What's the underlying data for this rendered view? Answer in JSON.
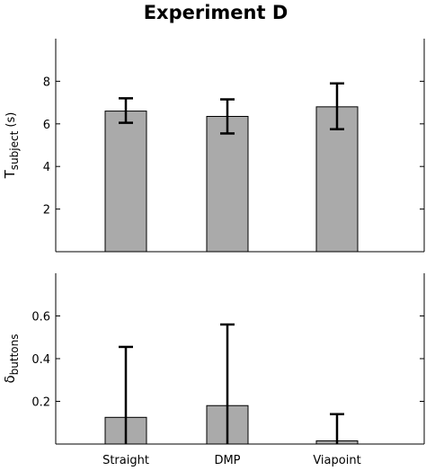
{
  "title": "Experiment D",
  "chart_data": [
    {
      "type": "bar",
      "ylabel": "T",
      "ylabel_sub": "subject",
      "ylabel_unit": " (s)",
      "categories": [
        "Straight",
        "DMP",
        "Viapoint"
      ],
      "values": [
        6.6,
        6.35,
        6.8
      ],
      "errors_low": [
        0.55,
        0.8,
        1.05
      ],
      "errors_high": [
        0.6,
        0.8,
        1.1
      ],
      "ylim": [
        0,
        10
      ],
      "yticks": [
        2,
        4,
        6,
        8
      ],
      "bar_color": "#aaaaaa",
      "grid": false,
      "show_xticklabels": false
    },
    {
      "type": "bar",
      "ylabel": "δ",
      "ylabel_sub": "buttons",
      "ylabel_unit": "",
      "categories": [
        "Straight",
        "DMP",
        "Viapoint"
      ],
      "values": [
        0.125,
        0.18,
        0.015
      ],
      "errors_low": [
        0.125,
        0.18,
        0.015
      ],
      "errors_high": [
        0.33,
        0.38,
        0.125
      ],
      "ylim": [
        0,
        0.8
      ],
      "yticks": [
        "0.2",
        "0.4",
        "0.6"
      ],
      "bar_color": "#aaaaaa",
      "grid": false,
      "show_xticklabels": true
    }
  ]
}
